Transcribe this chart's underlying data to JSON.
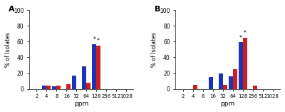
{
  "panel_A": {
    "categories": [
      "2",
      "4",
      "8",
      "16",
      "32",
      "64",
      "128",
      "256",
      "512",
      "1028"
    ],
    "blue": [
      0,
      4,
      3,
      0,
      17,
      29,
      57,
      0,
      0,
      0
    ],
    "red": [
      0,
      4,
      4,
      6,
      0,
      8,
      55,
      0,
      0,
      0
    ],
    "star_blue": [
      6
    ],
    "star_red": [
      6
    ],
    "label": "A"
  },
  "panel_B": {
    "categories": [
      "2",
      "4",
      "8",
      "16",
      "32",
      "64",
      "128",
      "256",
      "512",
      "1028"
    ],
    "blue": [
      0,
      0,
      0,
      15,
      20,
      16,
      59,
      0,
      0,
      0
    ],
    "red": [
      0,
      5,
      0,
      0,
      5,
      25,
      65,
      4,
      0,
      0
    ],
    "star_blue": [
      6
    ],
    "star_red": [
      6
    ],
    "label": "B"
  },
  "blue_color": "#1a34b5",
  "red_color": "#cc1f1f",
  "ylabel": "% of Isolates",
  "xlabel": "ppm",
  "ylim": [
    0,
    100
  ],
  "yticks": [
    0,
    20,
    40,
    60,
    80,
    100
  ],
  "bg_color": "#ffffff"
}
